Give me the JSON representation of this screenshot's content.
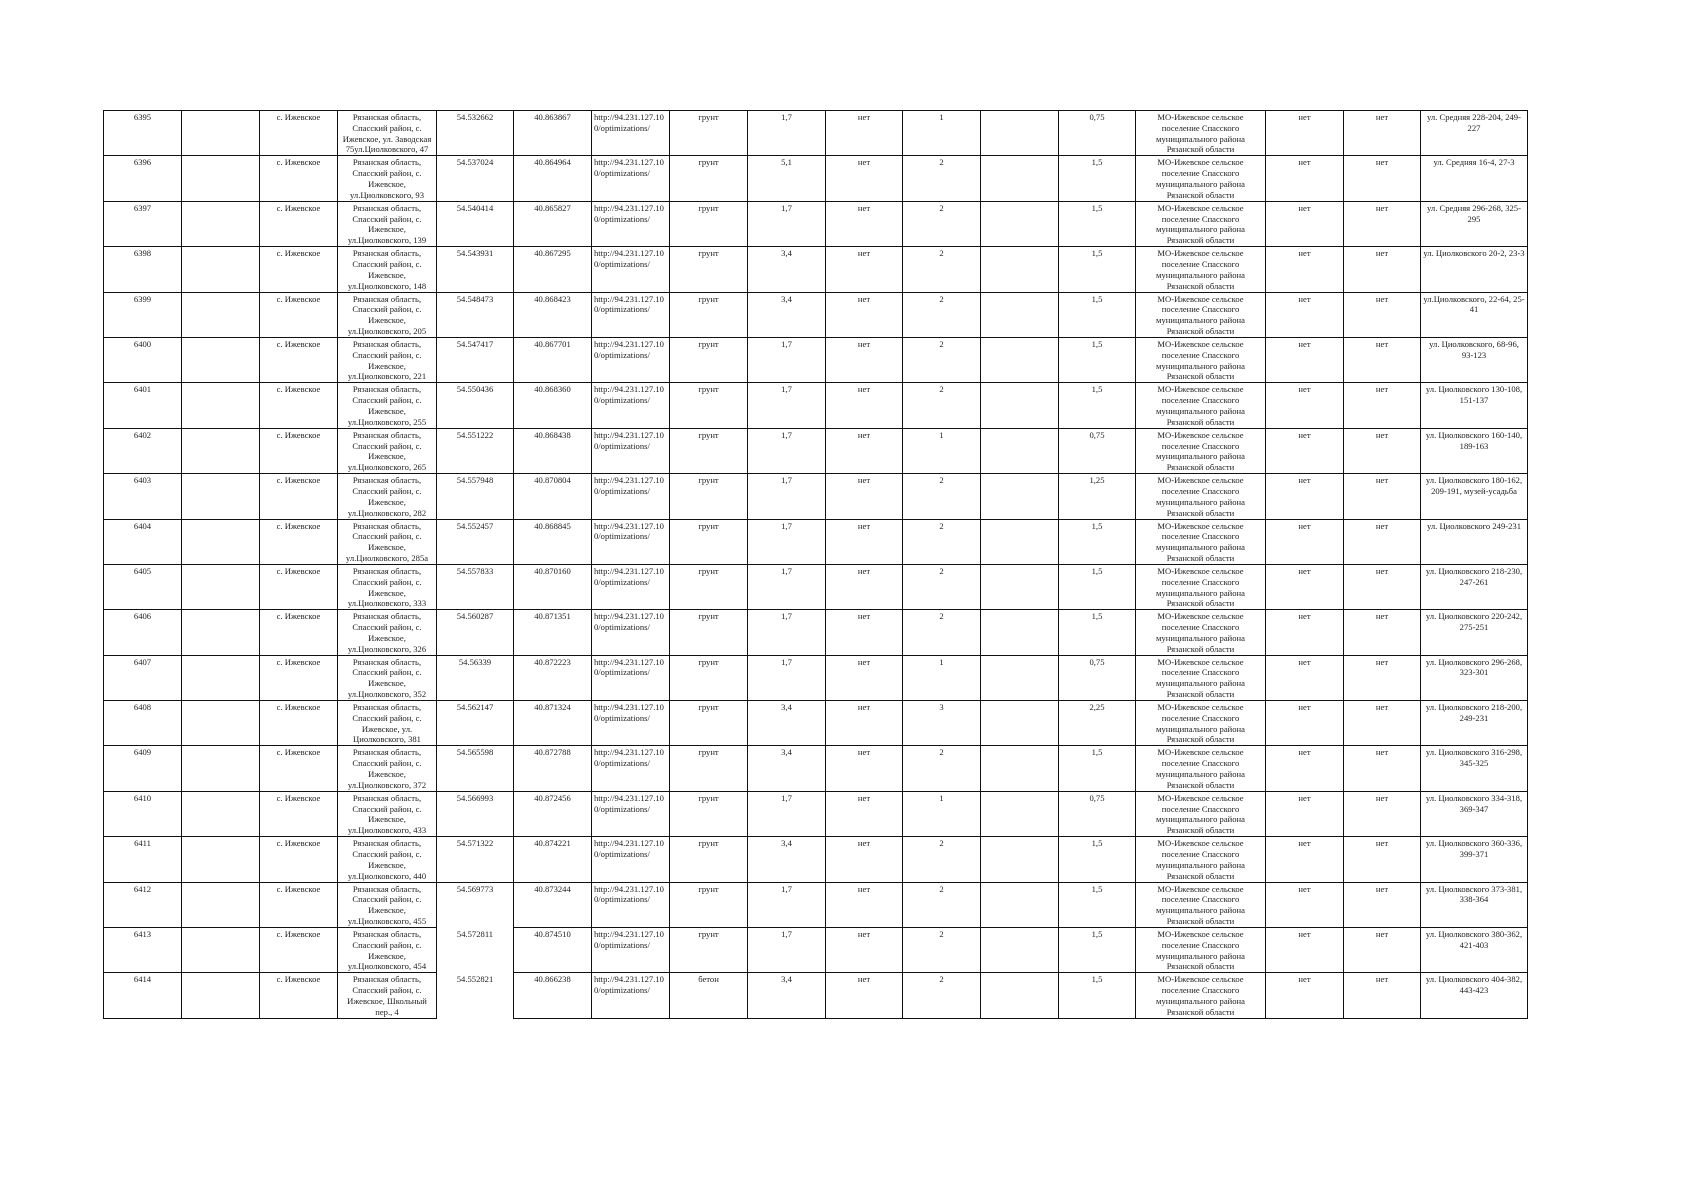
{
  "common": {
    "village": "с. Ижевское",
    "address_prefix": "Рязанская область, Спасский район, с. Ижевское,",
    "url": "http://94.231.127.100/optimizations/",
    "no": "нет",
    "owner": "МО-Ижевское сельское поселение Спасского муниципального района Рязанской области"
  },
  "rows": [
    {
      "id": "6395",
      "address": "Рязанская область, Спасский район, с. Ижевское, ул. Заводская 75ул.Циолковского, 47",
      "lat": "54.532662",
      "lon": "40.863867",
      "surface": "грунт",
      "length": "1,7",
      "count": "1",
      "area": "0,75",
      "streets": "ул. Средняя 228-204, 249-227"
    },
    {
      "id": "6396",
      "address": "Рязанская область, Спасский район, с. Ижевское, ул.Циолковского, 93",
      "lat": "54.537024",
      "lon": "40.864964",
      "surface": "грунт",
      "length": "5,1",
      "count": "2",
      "area": "1,5",
      "streets": "ул. Средняя 16-4, 27-3"
    },
    {
      "id": "6397",
      "address": "Рязанская область, Спасский район, с. Ижевское, ул.Циолковского, 139",
      "lat": "54.540414",
      "lon": "40.865827",
      "surface": "грунт",
      "length": "1,7",
      "count": "2",
      "area": "1,5",
      "streets": "ул. Средняя 296-268, 325-295"
    },
    {
      "id": "6398",
      "address": "Рязанская область, Спасский район, с. Ижевское, ул.Циолковского, 148",
      "lat": "54.543931",
      "lon": "40.867295",
      "surface": "грунт",
      "length": "3,4",
      "count": "2",
      "area": "1,5",
      "streets": "ул. Циолковского 20-2, 23-3"
    },
    {
      "id": "6399",
      "address": "Рязанская область, Спасский район, с. Ижевское, ул.Циолковского, 205",
      "lat": "54.548473",
      "lon": "40.868423",
      "surface": "грунт",
      "length": "3,4",
      "count": "2",
      "area": "1,5",
      "streets": "ул.Циолковского, 22-64, 25-41"
    },
    {
      "id": "6400",
      "address": "Рязанская область, Спасский район, с. Ижевское, ул.Циолковского, 221",
      "lat": "54.547417",
      "lon": "40.867701",
      "surface": "грунт",
      "length": "1,7",
      "count": "2",
      "area": "1,5",
      "streets": "ул. Циолковского, 68-96, 93-123"
    },
    {
      "id": "6401",
      "address": "Рязанская область, Спасский район, с. Ижевское, ул.Циолковского, 255",
      "lat": "54.550436",
      "lon": "40.868360",
      "surface": "грунт",
      "length": "1,7",
      "count": "2",
      "area": "1,5",
      "streets": "ул. Циолковского 130-108, 151-137"
    },
    {
      "id": "6402",
      "address": "Рязанская область, Спасский район, с. Ижевское, ул.Циолковского, 265",
      "lat": "54.551222",
      "lon": "40.868438",
      "surface": "грунт",
      "length": "1,7",
      "count": "1",
      "area": "0,75",
      "streets": "ул. Циолковского 160-140, 189-163"
    },
    {
      "id": "6403",
      "address": "Рязанская область, Спасский район, с. Ижевское, ул.Циолковского, 282",
      "lat": "54.557948",
      "lon": "40.870804",
      "surface": "грунт",
      "length": "1,7",
      "count": "2",
      "area": "1,25",
      "streets": "ул. Циолковского 180-162, 209-191, музей-усадьба"
    },
    {
      "id": "6404",
      "address": "Рязанская область, Спасский район, с. Ижевское, ул.Циолковского, 285а",
      "lat": "54.552457",
      "lon": "40.868845",
      "surface": "грунт",
      "length": "1,7",
      "count": "2",
      "area": "1,5",
      "streets": "ул. Циолковского 249-231"
    },
    {
      "id": "6405",
      "address": "Рязанская область, Спасский район, с. Ижевское, ул.Циолковского, 333",
      "lat": "54.557833",
      "lon": "40.870160",
      "surface": "грунт",
      "length": "1,7",
      "count": "2",
      "area": "1,5",
      "streets": "ул. Циолковского 218-230, 247-261"
    },
    {
      "id": "6406",
      "address": "Рязанская область, Спасский район, с. Ижевское, ул.Циолковского, 326",
      "lat": "54.560287",
      "lon": "40.871351",
      "surface": "грунт",
      "length": "1,7",
      "count": "2",
      "area": "1,5",
      "streets": "ул. Циолковского 220-242, 275-251"
    },
    {
      "id": "6407",
      "address": "Рязанская область, Спасский район, с. Ижевское, ул.Циолковского, 352",
      "lat": "54.56339",
      "lon": "40.872223",
      "surface": "грунт",
      "length": "1,7",
      "count": "1",
      "area": "0,75",
      "streets": "ул. Циолковского 296-268, 323-301"
    },
    {
      "id": "6408",
      "address": "Рязанская область, Спасский район, с. Ижевское, ул. Циолковского, 381",
      "lat": "54.562147",
      "lon": "40.871324",
      "surface": "грунт",
      "length": "3,4",
      "count": "3",
      "area": "2,25",
      "streets": "ул. Циолковского 218-200, 249-231"
    },
    {
      "id": "6409",
      "address": "Рязанская область, Спасский район, с. Ижевское, ул.Циолковского, 372",
      "lat": "54.565598",
      "lon": "40.872788",
      "surface": "грунт",
      "length": "3,4",
      "count": "2",
      "area": "1,5",
      "streets": "ул. Циолковского 316-298, 345-325"
    },
    {
      "id": "6410",
      "address": "Рязанская область, Спасский район, с. Ижевское, ул.Циолковского, 433",
      "lat": "54.566993",
      "lon": "40.872456",
      "surface": "грунт",
      "length": "1,7",
      "count": "1",
      "area": "0,75",
      "streets": "ул. Циолковского 334-318, 369-347"
    },
    {
      "id": "6411",
      "address": "Рязанская область, Спасский район, с. Ижевское, ул.Циолковского, 440",
      "lat": "54.571322",
      "lon": "40.874221",
      "surface": "грунт",
      "length": "3,4",
      "count": "2",
      "area": "1,5",
      "streets": "ул. Циолковского 360-336, 399-371"
    },
    {
      "id": "6412",
      "address": "Рязанская область, Спасский район, с. Ижевское, ул.Циолковского, 455",
      "lat": "54.569773",
      "lon": "40.873244",
      "surface": "грунт",
      "length": "1,7",
      "count": "2",
      "area": "1,5",
      "streets": "ул. Циолковского 373-381, 338-364"
    },
    {
      "id": "6413",
      "address": "Рязанская область, Спасский район, с. Ижевское, ул.Циолковского, 454",
      "lat": "54.572811",
      "lon": "40.874510",
      "surface": "грунт",
      "length": "1,7",
      "count": "2",
      "area": "1,5",
      "streets": "ул. Циолковского 380-362, 421-403"
    },
    {
      "id": "6414",
      "address": "Рязанская область, Спасский район, с. Ижевское, Школьный пер., 4",
      "lat": "54.552821",
      "lon": "40.866238",
      "surface": "бетон",
      "length": "3,4",
      "count": "2",
      "area": "1,5",
      "streets": "ул. Циолковского 404-382, 443-423"
    }
  ]
}
